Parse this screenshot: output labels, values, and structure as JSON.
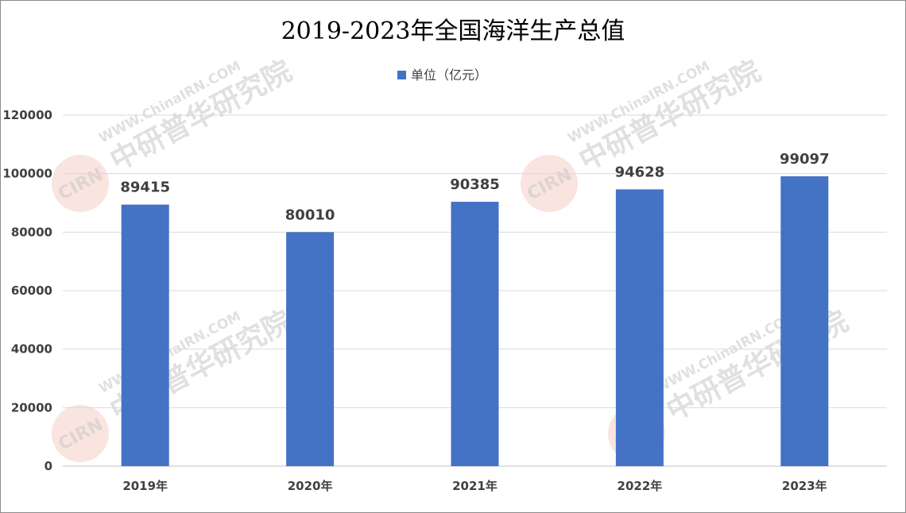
{
  "chart_data": {
    "type": "bar",
    "title": "2019-2023年全国海洋生产总值",
    "categories": [
      "2019年",
      "2020年",
      "2021年",
      "2022年",
      "2023年"
    ],
    "series": [
      {
        "name": "单位（亿元）",
        "values": [
          89415,
          80010,
          90385,
          94628,
          99097
        ],
        "color": "#4472c4"
      }
    ],
    "ylim": [
      0,
      120000
    ],
    "yticks": [
      0,
      20000,
      40000,
      60000,
      80000,
      100000,
      120000
    ],
    "grid": true,
    "legend": "top-center",
    "data_labels": true
  },
  "watermark": {
    "logo_text": "CIRN",
    "cn_text": "中研普华研究院",
    "url_text": "WWW.ChinaIRN.COM"
  }
}
